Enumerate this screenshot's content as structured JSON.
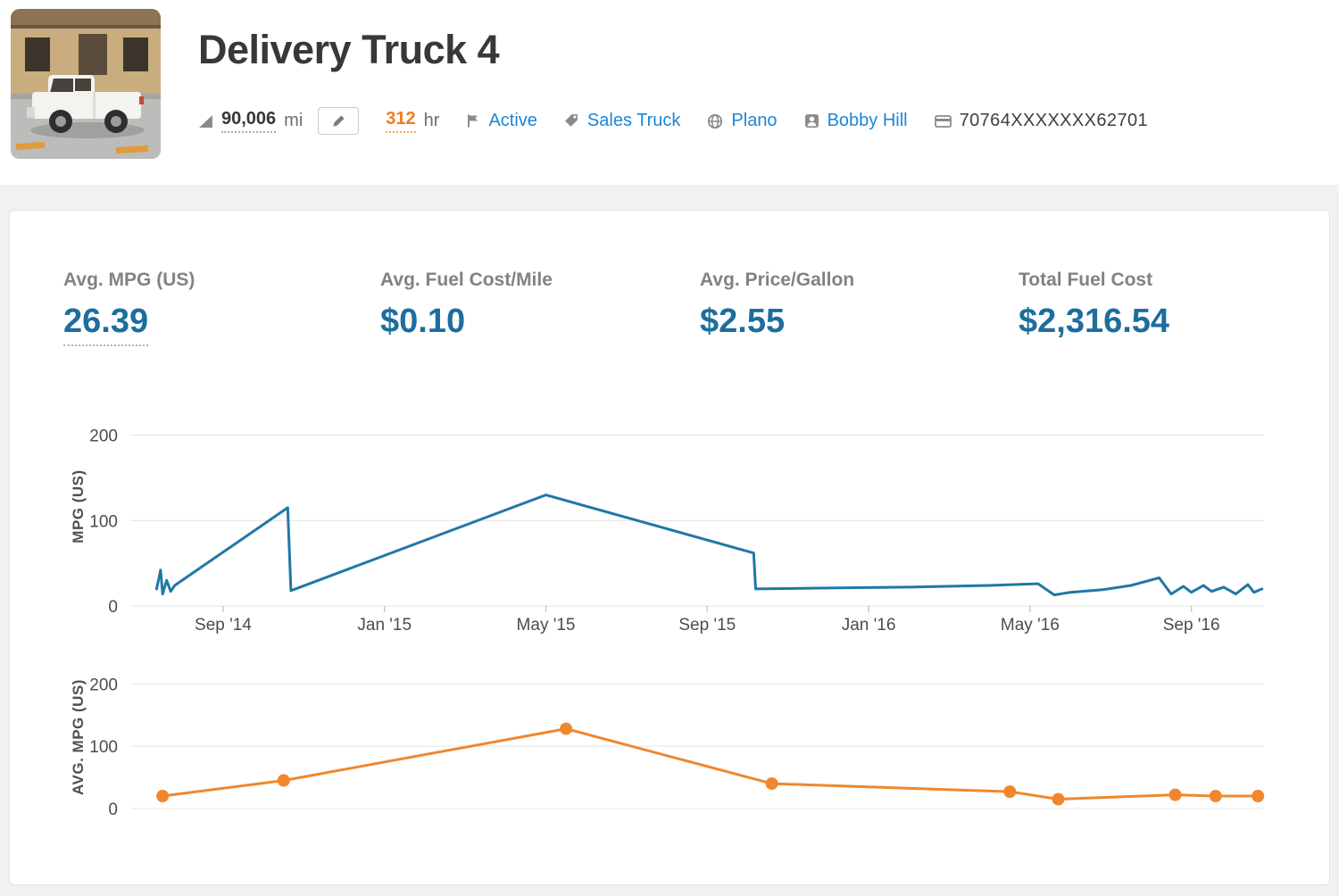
{
  "header": {
    "title": "Delivery Truck 4",
    "odometer": {
      "value": "90,006",
      "unit": "mi"
    },
    "hours": {
      "value": "312",
      "unit": "hr"
    },
    "status": "Active",
    "vehicle_type": "Sales Truck",
    "group": "Plano",
    "operator": "Bobby Hill",
    "vin": "70764XXXXXXX62701"
  },
  "icons": [
    "odometer-icon",
    "edit-pencil-icon",
    "flag-icon",
    "tag-icon",
    "globe-icon",
    "operator-badge-icon",
    "vin-card-icon"
  ],
  "colors": {
    "link_blue": "#1b86d8",
    "stat_blue": "#1d6e9e",
    "hours_orange": "#ef7d22",
    "chart_blue": "#1f78a5",
    "chart_orange": "#f0872e"
  },
  "stats": [
    {
      "label": "Avg. MPG (US)",
      "value": "26.39"
    },
    {
      "label": "Avg. Fuel Cost/Mile",
      "value": "$0.10"
    },
    {
      "label": "Avg. Price/Gallon",
      "value": "$2.55"
    },
    {
      "label": "Total Fuel Cost",
      "value": "$2,316.54"
    }
  ],
  "chart_data": [
    {
      "type": "line",
      "name": "MPG (US) per fuel entry",
      "ylabel": "MPG (US)",
      "yticks": [
        0,
        100,
        200
      ],
      "ylim": [
        0,
        233
      ],
      "xlim": [
        0.7,
        28.8
      ],
      "x_unit": "months since Jun 2014",
      "xticks": [
        {
          "x": 3,
          "label": "Sep '14"
        },
        {
          "x": 7,
          "label": "Jan '15"
        },
        {
          "x": 11,
          "label": "May '15"
        },
        {
          "x": 15,
          "label": "Sep '15"
        },
        {
          "x": 19,
          "label": "Jan '16"
        },
        {
          "x": 23,
          "label": "May '16"
        },
        {
          "x": 27,
          "label": "Sep '16"
        }
      ],
      "color": "#1f78a5",
      "markers": false,
      "grid": true,
      "legend": "none",
      "points": [
        [
          1.35,
          20
        ],
        [
          1.45,
          42
        ],
        [
          1.5,
          14
        ],
        [
          1.6,
          30
        ],
        [
          1.7,
          17
        ],
        [
          1.8,
          24
        ],
        [
          4.6,
          115
        ],
        [
          4.68,
          18
        ],
        [
          11,
          130
        ],
        [
          16.15,
          62
        ],
        [
          16.2,
          20
        ],
        [
          18,
          21
        ],
        [
          20,
          22
        ],
        [
          22,
          24
        ],
        [
          23.2,
          26
        ],
        [
          23.6,
          13
        ],
        [
          24,
          16
        ],
        [
          24.8,
          19
        ],
        [
          25.5,
          24
        ],
        [
          26.2,
          33
        ],
        [
          26.5,
          14
        ],
        [
          26.8,
          23
        ],
        [
          27,
          16
        ],
        [
          27.3,
          24
        ],
        [
          27.5,
          17
        ],
        [
          27.8,
          22
        ],
        [
          28.1,
          14
        ],
        [
          28.4,
          25
        ],
        [
          28.55,
          16
        ],
        [
          28.75,
          20
        ]
      ]
    },
    {
      "type": "line",
      "name": "Average MPG (US)",
      "ylabel": "AVG. MPG (US)",
      "yticks": [
        0,
        100,
        200
      ],
      "ylim": [
        0,
        229
      ],
      "xlim": [
        0.7,
        28.8
      ],
      "x_unit": "months since Jun 2014",
      "xticks": [],
      "color": "#f0872e",
      "markers": true,
      "grid": true,
      "legend": "none",
      "points": [
        [
          1.5,
          20
        ],
        [
          4.5,
          45
        ],
        [
          11.5,
          128
        ],
        [
          16.6,
          40
        ],
        [
          22.5,
          27
        ],
        [
          23.7,
          15
        ],
        [
          26.6,
          22
        ],
        [
          27.6,
          20
        ],
        [
          28.65,
          20
        ]
      ]
    }
  ]
}
